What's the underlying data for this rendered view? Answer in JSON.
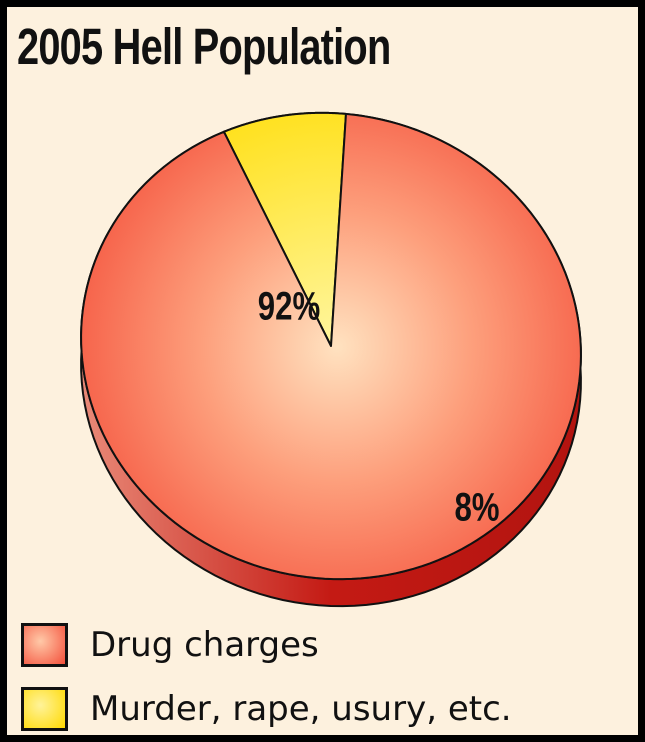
{
  "title": "2005 Hell Population",
  "chart_data": {
    "type": "pie",
    "title": "2005 Hell Population",
    "slices": [
      {
        "label": "Drug charges",
        "value": 92,
        "value_label": "92%",
        "color": "#f7624b"
      },
      {
        "label": "Murder, rape, usury, etc.",
        "value": 8,
        "value_label": "8%",
        "color": "#ffe000"
      }
    ],
    "legend_position": "bottom-left",
    "style": "3d tilted pie"
  },
  "legend": {
    "items": [
      {
        "label": "Drug charges",
        "color": "#f7624b"
      },
      {
        "label": "Murder, rape, usury, etc.",
        "color": "#ffe000"
      }
    ]
  },
  "colors": {
    "background": "#fdf1de",
    "border": "#000000",
    "drug_side": "#c41a14",
    "murder_side": "#f2c000"
  }
}
